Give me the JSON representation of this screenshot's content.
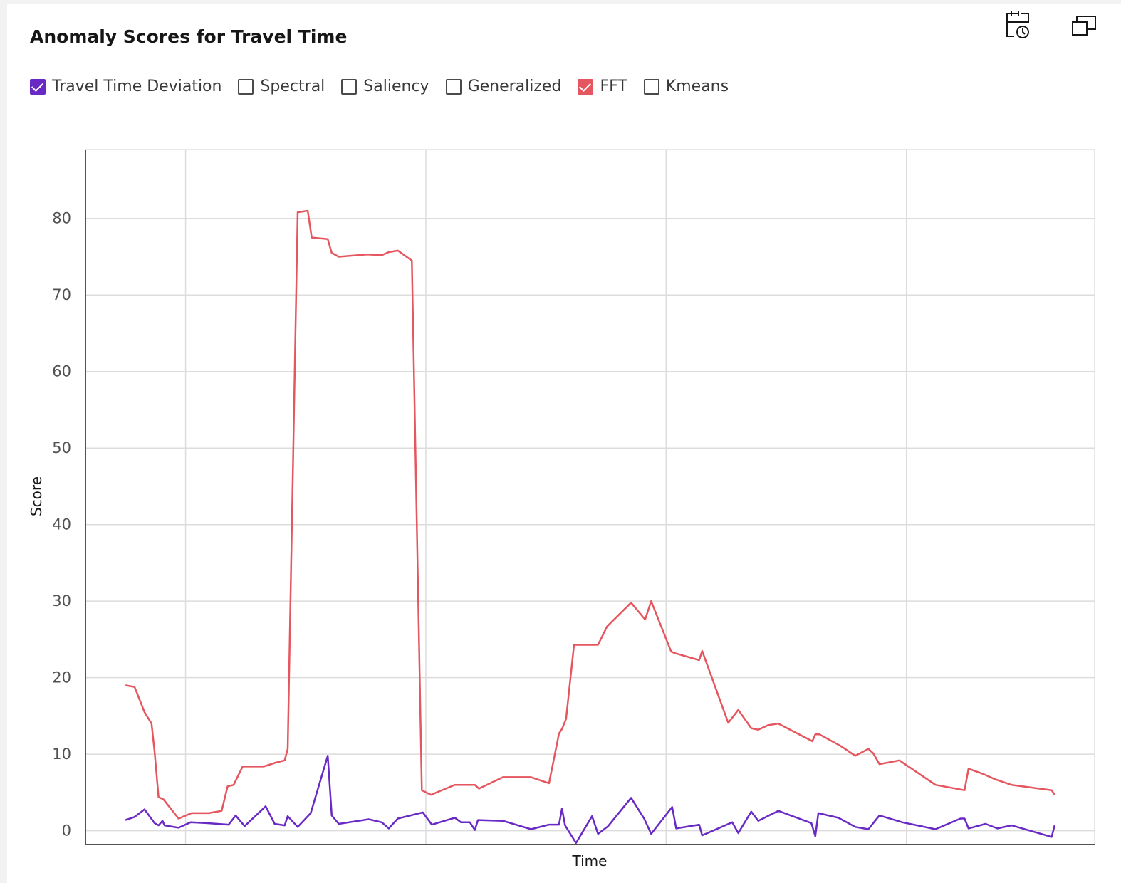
{
  "chart_data": {
    "type": "line",
    "title": "Anomaly Scores for Travel Time",
    "xlabel": "Time",
    "ylabel": "Score",
    "xlim": [
      0,
      100.8
    ],
    "xticks": [
      10,
      34,
      58,
      82
    ],
    "ylim": [
      -1.8,
      89
    ],
    "yticks": [
      0,
      10,
      20,
      30,
      40,
      50,
      60,
      70,
      80
    ],
    "grid": true,
    "series": [
      {
        "name": "Travel Time Deviation",
        "checked": true,
        "color": "#6929c4",
        "x": [
          4.0,
          4.9,
          5.9,
          6.9,
          7.3,
          7.7,
          7.9,
          9.3,
          10.5,
          12.1,
          14.3,
          15.0,
          15.9,
          18.0,
          18.9,
          19.9,
          20.2,
          21.2,
          22.5,
          24.2,
          24.6,
          25.3,
          28.3,
          29.6,
          30.3,
          31.2,
          33.7,
          34.6,
          36.9,
          37.5,
          38.4,
          38.9,
          39.2,
          41.7,
          44.5,
          46.3,
          47.3,
          47.6,
          47.9,
          49.0,
          50.6,
          51.2,
          52.2,
          54.5,
          55.8,
          56.5,
          58.6,
          59.0,
          61.3,
          61.6,
          64.6,
          65.2,
          66.5,
          67.2,
          69.2,
          72.5,
          72.9,
          73.2,
          75.2,
          76.9,
          78.2,
          79.3,
          81.6,
          84.9,
          87.4,
          87.8,
          88.2,
          89.9,
          91.1,
          92.5,
          96.5,
          96.8
        ],
        "values": [
          1.4,
          1.8,
          2.8,
          1.0,
          0.7,
          1.3,
          0.7,
          0.4,
          1.1,
          1.0,
          0.8,
          2.0,
          0.6,
          3.2,
          0.9,
          0.7,
          1.9,
          0.5,
          2.3,
          9.8,
          2.0,
          0.9,
          1.5,
          1.1,
          0.3,
          1.6,
          2.4,
          0.8,
          1.7,
          1.1,
          1.1,
          0.1,
          1.4,
          1.3,
          0.2,
          0.8,
          0.8,
          2.9,
          0.7,
          -1.6,
          1.9,
          -0.4,
          0.6,
          4.3,
          1.6,
          -0.4,
          3.1,
          0.3,
          0.8,
          -0.6,
          1.1,
          -0.3,
          2.5,
          1.3,
          2.6,
          1.0,
          -0.7,
          2.3,
          1.7,
          0.5,
          0.2,
          2.0,
          1.1,
          0.2,
          1.6,
          1.6,
          0.3,
          0.9,
          0.3,
          0.7,
          -0.8,
          0.7
        ]
      },
      {
        "name": "Spectral",
        "checked": false
      },
      {
        "name": "Saliency",
        "checked": false
      },
      {
        "name": "Generalized",
        "checked": false
      },
      {
        "name": "FFT",
        "checked": true,
        "color": "#e5565e",
        "x": [
          4.0,
          4.9,
          5.9,
          6.6,
          6.9,
          7.3,
          7.8,
          9.3,
          10.6,
          12.3,
          13.6,
          14.2,
          14.8,
          15.7,
          17.8,
          19.0,
          19.9,
          20.2,
          21.2,
          22.2,
          22.6,
          24.2,
          24.6,
          25.3,
          28.1,
          29.6,
          30.3,
          31.2,
          32.6,
          33.6,
          34.5,
          36.9,
          38.9,
          39.3,
          41.7,
          44.5,
          46.3,
          47.3,
          47.6,
          48.0,
          48.8,
          51.2,
          52.1,
          54.5,
          55.9,
          56.5,
          58.5,
          58.9,
          61.3,
          61.6,
          64.2,
          65.2,
          66.5,
          67.2,
          68.2,
          69.2,
          72.6,
          72.9,
          73.3,
          75.4,
          76.9,
          78.2,
          78.7,
          79.3,
          81.3,
          84.9,
          87.8,
          88.2,
          89.7,
          90.9,
          92.5,
          96.5,
          96.8
        ],
        "values": [
          19.0,
          18.8,
          15.5,
          14.0,
          10.4,
          4.4,
          4.1,
          1.6,
          2.3,
          2.3,
          2.6,
          5.8,
          6.0,
          8.4,
          8.4,
          8.9,
          9.2,
          10.7,
          80.8,
          81.0,
          77.5,
          77.3,
          75.5,
          75.0,
          75.3,
          75.2,
          75.6,
          75.8,
          74.5,
          5.3,
          4.7,
          6.0,
          6.0,
          5.5,
          7.0,
          7.0,
          6.2,
          12.7,
          13.3,
          14.6,
          24.3,
          24.3,
          26.7,
          29.8,
          27.6,
          30.0,
          23.4,
          23.2,
          22.3,
          23.5,
          14.1,
          15.8,
          13.4,
          13.2,
          13.8,
          14.0,
          11.7,
          12.6,
          12.6,
          11.1,
          9.8,
          10.7,
          10.1,
          8.7,
          9.2,
          6.0,
          5.3,
          8.1,
          7.4,
          6.7,
          6.0,
          5.3,
          4.7
        ]
      },
      {
        "name": "Kmeans",
        "checked": false
      }
    ]
  }
}
